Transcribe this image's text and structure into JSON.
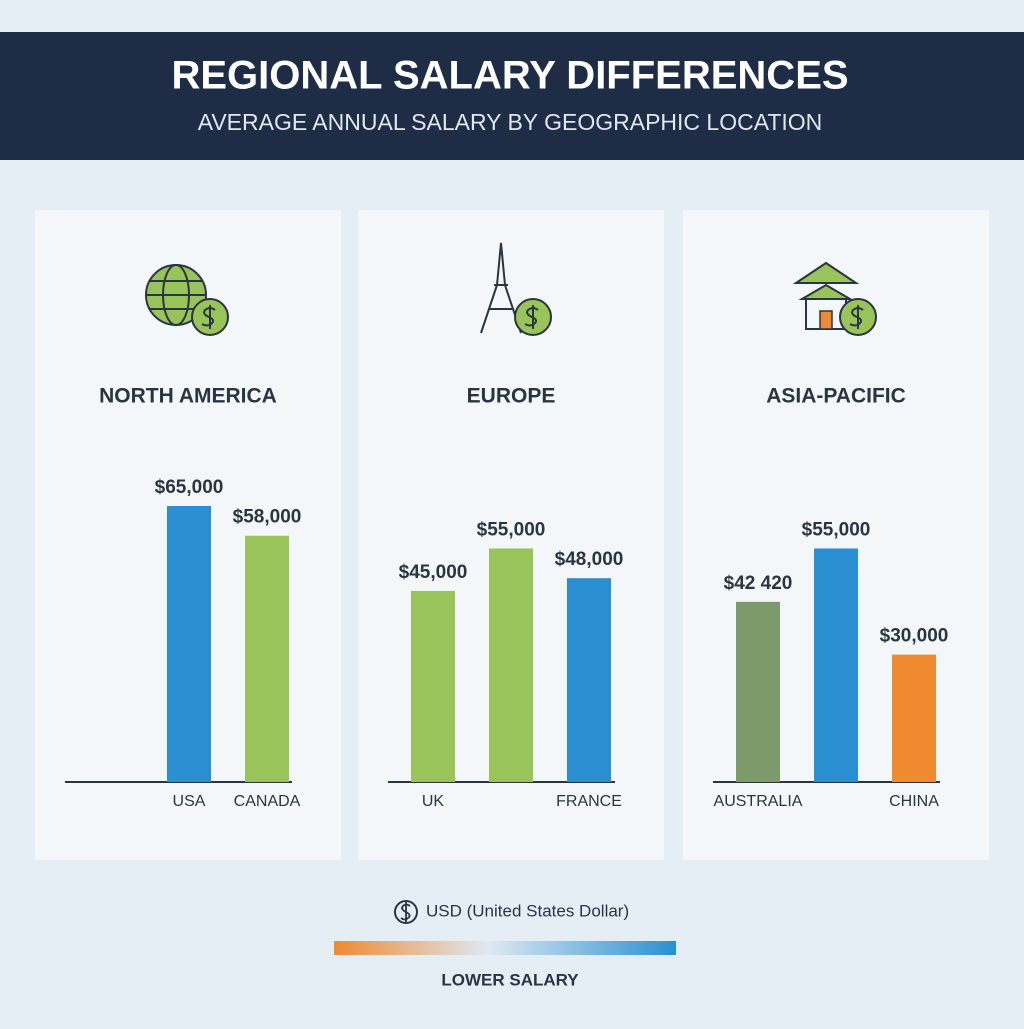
{
  "header": {
    "title": "REGIONAL SALARY DIFFERENCES",
    "subtitle": "AVERAGE ANNUAL SALARY BY GEOGRAPHIC LOCATION"
  },
  "chart_data": [
    {
      "type": "bar",
      "title": "NORTH AMERICA",
      "categories": [
        "USA",
        "CANADA"
      ],
      "values": [
        65000,
        58000
      ],
      "value_labels": [
        "$65,000",
        "$58,000"
      ],
      "colors": [
        "#2a8fd0",
        "#98c45a"
      ]
    },
    {
      "type": "bar",
      "title": "EUROPE",
      "categories": [
        "UK",
        null,
        "FRANCE"
      ],
      "values": [
        45000,
        55000,
        48000
      ],
      "value_labels": [
        "$45,000",
        "$55,000",
        "$48,000"
      ],
      "colors": [
        "#98c45a",
        "#98c45a",
        "#2a8fd0"
      ]
    },
    {
      "type": "bar",
      "title": "ASIA-PACIFIC",
      "categories": [
        "AUSTRALIA",
        null,
        "CHINA"
      ],
      "values": [
        42420,
        55000,
        30000
      ],
      "value_labels": [
        "$42 420",
        "$55,000",
        "$30,000"
      ],
      "colors": [
        "#7d9a6a",
        "#2a8fd0",
        "#f08a30"
      ]
    }
  ],
  "legend": {
    "currency": "USD (United States Dollar)",
    "scale_label": "LOWER SALARY"
  }
}
